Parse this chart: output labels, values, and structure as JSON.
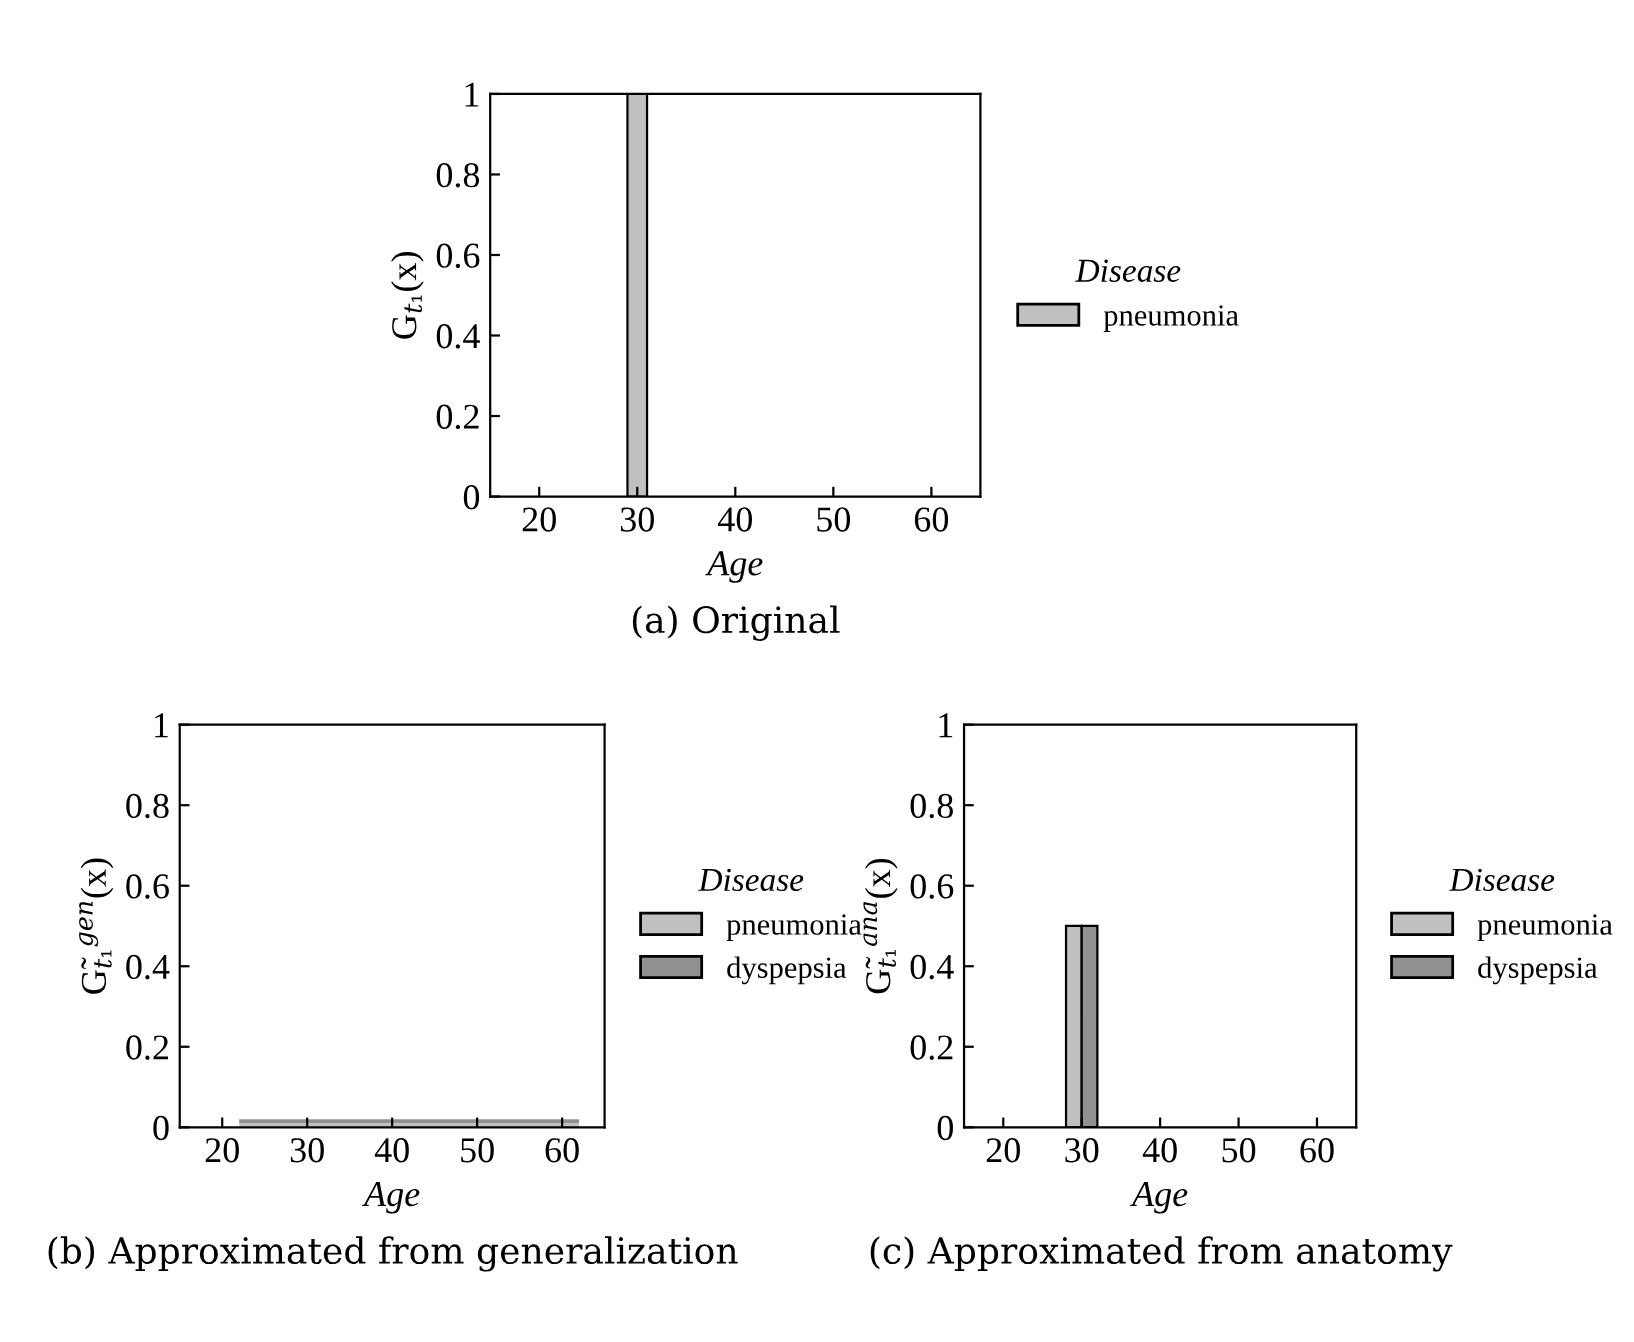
{
  "chart_data": [
    {
      "type": "bar",
      "title": "(a) Original",
      "xlabel": "Age",
      "ylabel": "G$_{t₁}$(x)",
      "legend_title": "Disease",
      "legend": "right",
      "grid": false,
      "xlim": [
        15,
        65
      ],
      "xticks": [
        20,
        30,
        40,
        50,
        60
      ],
      "ylim": [
        0,
        1
      ],
      "yticks": [
        0,
        0.2,
        0.4,
        0.6,
        0.8,
        1
      ],
      "series": [
        {
          "name": "pneumonia",
          "color": "#c0c0c0",
          "x": [
            30
          ],
          "values": [
            1
          ]
        }
      ]
    },
    {
      "type": "area",
      "stacked": true,
      "title": "(b) Approximated from generalization",
      "xlabel": "Age",
      "ylabel": "G̃$_{t₁}$$^{gen}$(x)",
      "legend_title": "Disease",
      "legend": "right",
      "grid": false,
      "xlim": [
        15,
        65
      ],
      "xticks": [
        20,
        30,
        40,
        50,
        60
      ],
      "ylim": [
        0,
        1
      ],
      "yticks": [
        0,
        0.2,
        0.4,
        0.6,
        0.8,
        1
      ],
      "series": [
        {
          "name": "pneumonia",
          "color": "#c0c0c0",
          "x": [
            22,
            62
          ],
          "values": [
            0.01,
            0.01
          ]
        },
        {
          "name": "dyspepsia",
          "color": "#909090",
          "x": [
            22,
            62
          ],
          "values": [
            0.01,
            0.01
          ]
        }
      ]
    },
    {
      "type": "bar",
      "title": "(c) Approximated from anatomy",
      "xlabel": "Age",
      "ylabel": "G̃$_{t₁}$$^{ana}$(x)",
      "legend_title": "Disease",
      "legend": "right",
      "grid": false,
      "xlim": [
        15,
        65
      ],
      "xticks": [
        20,
        30,
        40,
        50,
        60
      ],
      "ylim": [
        0,
        1
      ],
      "yticks": [
        0,
        0.2,
        0.4,
        0.6,
        0.8,
        1
      ],
      "series": [
        {
          "name": "pneumonia",
          "color": "#c0c0c0",
          "x": [
            30
          ],
          "values": [
            0.5
          ]
        },
        {
          "name": "dyspepsia",
          "color": "#909090",
          "x": [
            30
          ],
          "values": [
            0.5
          ]
        }
      ]
    }
  ]
}
